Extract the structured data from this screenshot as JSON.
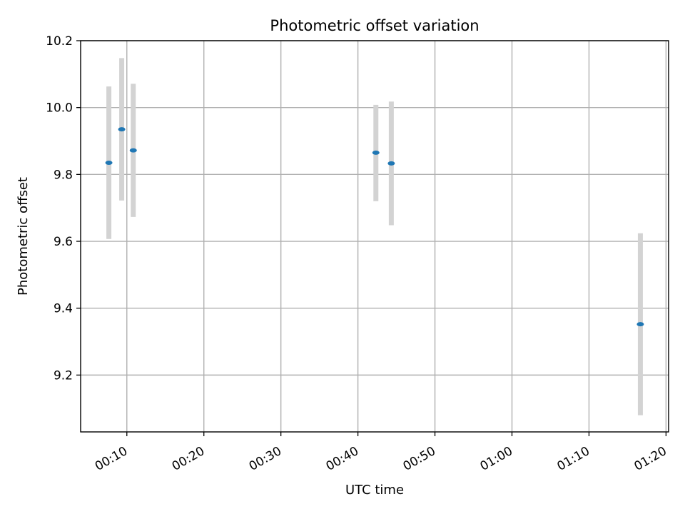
{
  "chart_data": {
    "type": "scatter",
    "title": "Photometric offset variation",
    "xlabel": "UTC time",
    "ylabel": "Photometric offset",
    "x_axis_type": "time",
    "xlim": [
      "00:04:00",
      "01:20:20"
    ],
    "ylim": [
      9.03,
      10.2
    ],
    "xticks": [
      "00:10",
      "00:20",
      "00:30",
      "00:40",
      "00:50",
      "01:00",
      "01:10",
      "01:20"
    ],
    "xtick_rotation_deg": 30,
    "yticks": [
      "9.2",
      "9.4",
      "9.6",
      "9.8",
      "10.0",
      "10.2"
    ],
    "grid": true,
    "legend": "none",
    "point_color": "#1f77b4",
    "errorbar_color": "#d3d3d3",
    "points": [
      {
        "x": "00:07:40",
        "y": 9.835,
        "yerr_low": 9.607,
        "yerr_high": 10.063
      },
      {
        "x": "00:09:20",
        "y": 9.935,
        "yerr_low": 9.722,
        "yerr_high": 10.148
      },
      {
        "x": "00:10:50",
        "y": 9.872,
        "yerr_low": 9.673,
        "yerr_high": 10.071
      },
      {
        "x": "00:42:20",
        "y": 9.865,
        "yerr_low": 9.72,
        "yerr_high": 10.008
      },
      {
        "x": "00:44:20",
        "y": 9.833,
        "yerr_low": 9.648,
        "yerr_high": 10.018
      },
      {
        "x": "01:16:40",
        "y": 9.352,
        "yerr_low": 9.08,
        "yerr_high": 9.624
      }
    ]
  }
}
